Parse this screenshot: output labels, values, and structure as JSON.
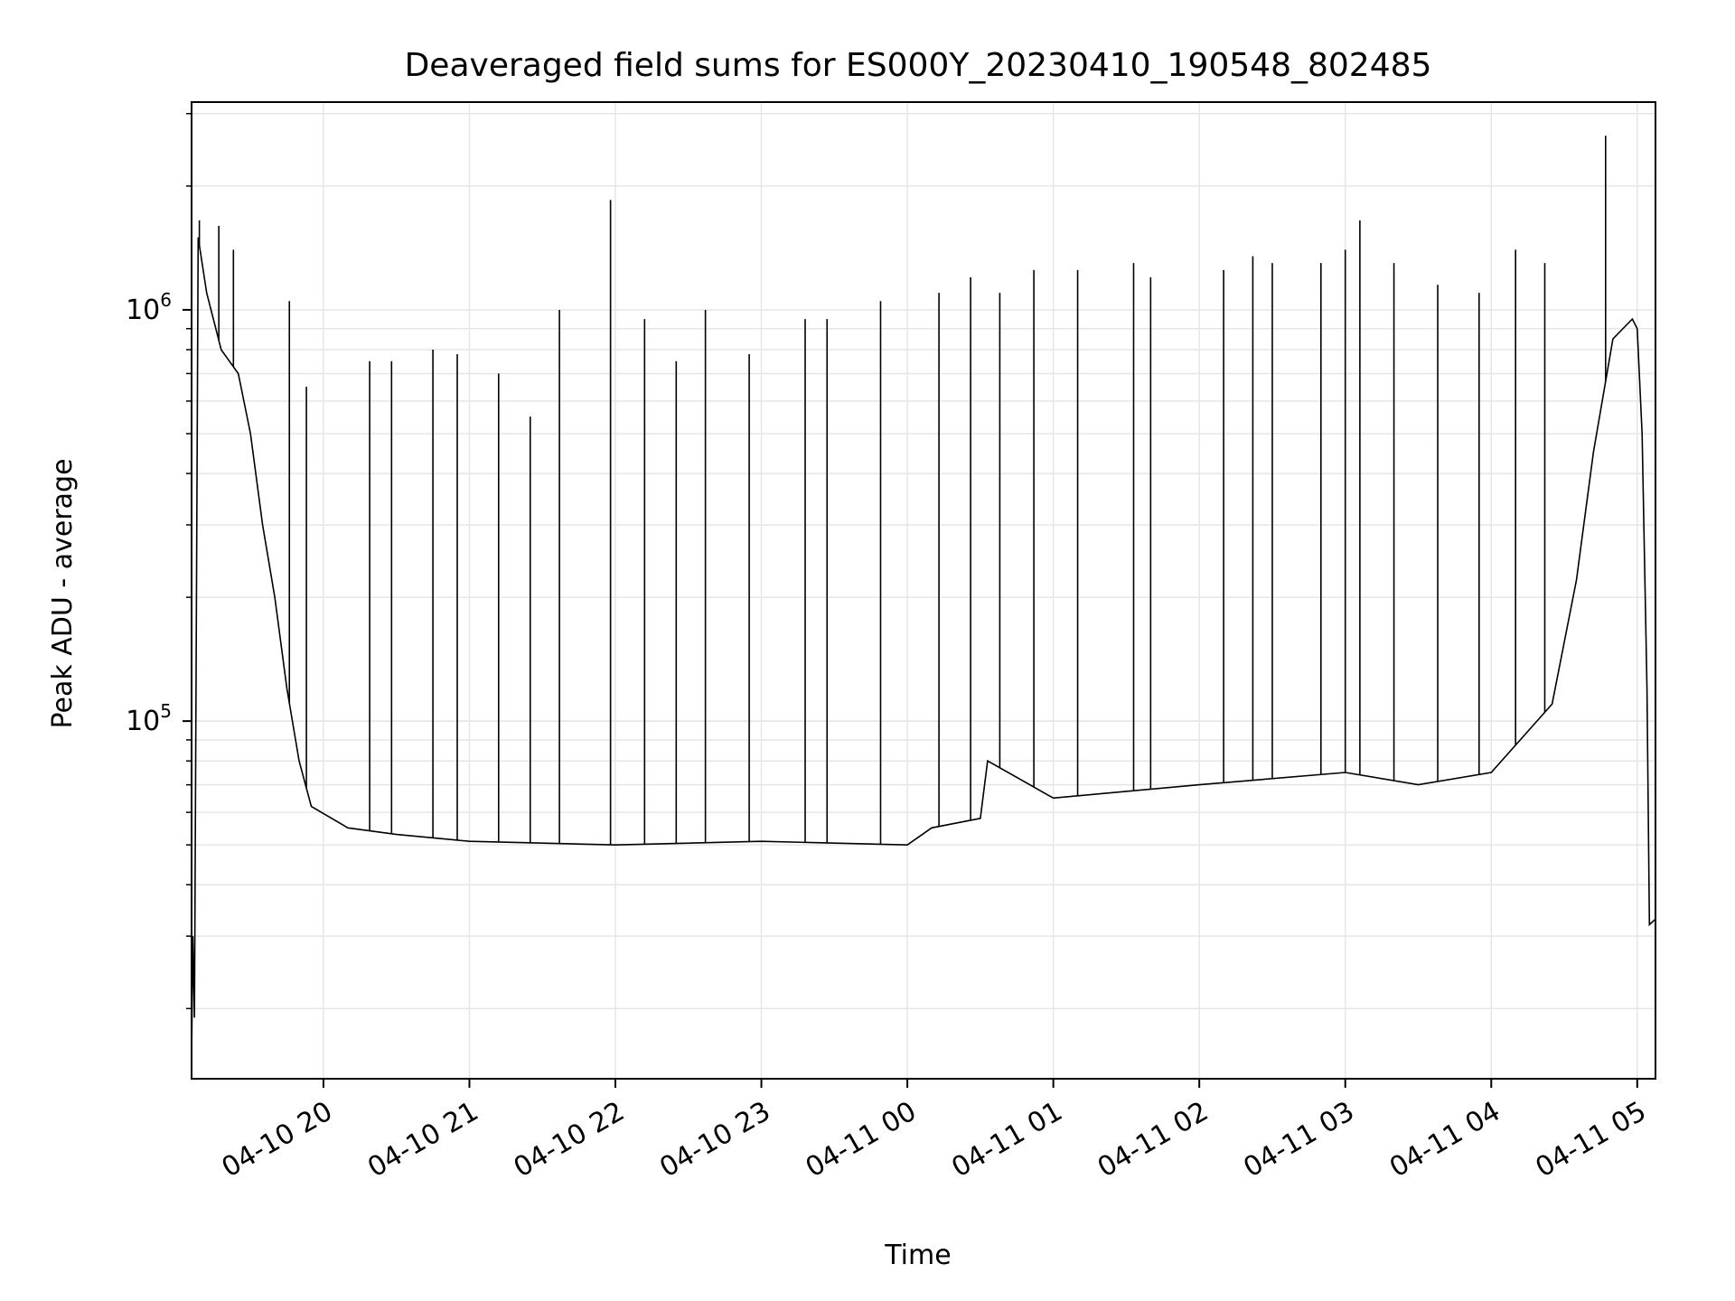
{
  "chart_data": {
    "type": "line",
    "title": "Deaveraged field sums for ES000Y_20230410_190548_802485",
    "xlabel": "Time",
    "ylabel": "Peak ADU - average",
    "y_scale": "log",
    "ylim": [
      13500,
      3200000
    ],
    "xlim": [
      "2023-04-10 19:05:48",
      "2023-04-11 05:07:30"
    ],
    "grid": true,
    "colors": {
      "line": "#000000",
      "grid": "#e6e6e6",
      "axes": "#000000"
    },
    "x_ticks": [
      {
        "value": "2023-04-10 20:00",
        "label": "04-10 20"
      },
      {
        "value": "2023-04-10 21:00",
        "label": "04-10 21"
      },
      {
        "value": "2023-04-10 22:00",
        "label": "04-10 22"
      },
      {
        "value": "2023-04-10 23:00",
        "label": "04-10 23"
      },
      {
        "value": "2023-04-11 00:00",
        "label": "04-11 00"
      },
      {
        "value": "2023-04-11 01:00",
        "label": "04-11 01"
      },
      {
        "value": "2023-04-11 02:00",
        "label": "04-11 02"
      },
      {
        "value": "2023-04-11 03:00",
        "label": "04-11 03"
      },
      {
        "value": "2023-04-11 04:00",
        "label": "04-11 04"
      },
      {
        "value": "2023-04-11 05:00",
        "label": "04-11 05"
      }
    ],
    "y_major_ticks": [
      {
        "value": 100000,
        "base": "10",
        "exp": "5"
      },
      {
        "value": 1000000,
        "base": "10",
        "exp": "6"
      }
    ],
    "series": [
      {
        "baseline": [
          {
            "t": "2023-04-10 19:05:48",
            "y": 15000
          },
          {
            "t": "2023-04-10 19:06:20",
            "y": 30000
          },
          {
            "t": "2023-04-10 19:07:00",
            "y": 19000
          },
          {
            "t": "2023-04-10 19:08:30",
            "y": 1500000
          },
          {
            "t": "2023-04-10 19:12:00",
            "y": 1100000
          },
          {
            "t": "2023-04-10 19:18:00",
            "y": 800000
          },
          {
            "t": "2023-04-10 19:25:00",
            "y": 700000
          },
          {
            "t": "2023-04-10 19:30:00",
            "y": 500000
          },
          {
            "t": "2023-04-10 19:35:00",
            "y": 300000
          },
          {
            "t": "2023-04-10 19:40:00",
            "y": 200000
          },
          {
            "t": "2023-04-10 19:45:00",
            "y": 120000
          },
          {
            "t": "2023-04-10 19:50:00",
            "y": 80000
          },
          {
            "t": "2023-04-10 19:55:00",
            "y": 62000
          },
          {
            "t": "2023-04-10 20:10:00",
            "y": 55000
          },
          {
            "t": "2023-04-10 20:30:00",
            "y": 53000
          },
          {
            "t": "2023-04-10 21:00:00",
            "y": 51000
          },
          {
            "t": "2023-04-10 22:00:00",
            "y": 50000
          },
          {
            "t": "2023-04-10 23:00:00",
            "y": 51000
          },
          {
            "t": "2023-04-11 00:00:00",
            "y": 50000
          },
          {
            "t": "2023-04-11 00:10:00",
            "y": 55000
          },
          {
            "t": "2023-04-11 00:30:00",
            "y": 58000
          },
          {
            "t": "2023-04-11 00:33:00",
            "y": 80000
          },
          {
            "t": "2023-04-11 01:00:00",
            "y": 65000
          },
          {
            "t": "2023-04-11 02:00:00",
            "y": 70000
          },
          {
            "t": "2023-04-11 03:00:00",
            "y": 75000
          },
          {
            "t": "2023-04-11 03:30:00",
            "y": 70000
          },
          {
            "t": "2023-04-11 04:00:00",
            "y": 75000
          },
          {
            "t": "2023-04-11 04:25:00",
            "y": 110000
          },
          {
            "t": "2023-04-11 04:35:00",
            "y": 220000
          },
          {
            "t": "2023-04-11 04:42:00",
            "y": 450000
          },
          {
            "t": "2023-04-11 04:50:00",
            "y": 850000
          },
          {
            "t": "2023-04-11 04:58:00",
            "y": 950000
          },
          {
            "t": "2023-04-11 05:00:00",
            "y": 900000
          },
          {
            "t": "2023-04-11 05:02:00",
            "y": 500000
          },
          {
            "t": "2023-04-11 05:04:00",
            "y": 120000
          },
          {
            "t": "2023-04-11 05:05:00",
            "y": 32000
          },
          {
            "t": "2023-04-11 05:07:30",
            "y": 33000
          }
        ],
        "spikes": [
          {
            "t": "2023-04-10 19:09:00",
            "y": 1650000
          },
          {
            "t": "2023-04-10 19:17:00",
            "y": 1600000
          },
          {
            "t": "2023-04-10 19:23:00",
            "y": 1400000
          },
          {
            "t": "2023-04-10 19:46:00",
            "y": 1050000
          },
          {
            "t": "2023-04-10 19:53:00",
            "y": 650000
          },
          {
            "t": "2023-04-10 20:19:00",
            "y": 750000
          },
          {
            "t": "2023-04-10 20:28:00",
            "y": 750000
          },
          {
            "t": "2023-04-10 20:45:00",
            "y": 800000
          },
          {
            "t": "2023-04-10 20:55:00",
            "y": 780000
          },
          {
            "t": "2023-04-10 21:12:00",
            "y": 700000
          },
          {
            "t": "2023-04-10 21:25:00",
            "y": 550000
          },
          {
            "t": "2023-04-10 21:37:00",
            "y": 1000000
          },
          {
            "t": "2023-04-10 21:58:00",
            "y": 1850000
          },
          {
            "t": "2023-04-10 22:12:00",
            "y": 950000
          },
          {
            "t": "2023-04-10 22:25:00",
            "y": 750000
          },
          {
            "t": "2023-04-10 22:37:00",
            "y": 1000000
          },
          {
            "t": "2023-04-10 22:55:00",
            "y": 780000
          },
          {
            "t": "2023-04-10 23:18:00",
            "y": 950000
          },
          {
            "t": "2023-04-10 23:27:00",
            "y": 950000
          },
          {
            "t": "2023-04-10 23:49:00",
            "y": 1050000
          },
          {
            "t": "2023-04-11 00:13:00",
            "y": 1100000
          },
          {
            "t": "2023-04-11 00:26:00",
            "y": 1200000
          },
          {
            "t": "2023-04-11 00:38:00",
            "y": 1100000
          },
          {
            "t": "2023-04-11 00:52:00",
            "y": 1250000
          },
          {
            "t": "2023-04-11 01:10:00",
            "y": 1250000
          },
          {
            "t": "2023-04-11 01:33:00",
            "y": 1300000
          },
          {
            "t": "2023-04-11 01:40:00",
            "y": 1200000
          },
          {
            "t": "2023-04-11 02:10:00",
            "y": 1250000
          },
          {
            "t": "2023-04-11 02:22:00",
            "y": 1350000
          },
          {
            "t": "2023-04-11 02:30:00",
            "y": 1300000
          },
          {
            "t": "2023-04-11 02:50:00",
            "y": 1300000
          },
          {
            "t": "2023-04-11 03:00:00",
            "y": 1400000
          },
          {
            "t": "2023-04-11 03:06:00",
            "y": 1650000
          },
          {
            "t": "2023-04-11 03:20:00",
            "y": 1300000
          },
          {
            "t": "2023-04-11 03:38:00",
            "y": 1150000
          },
          {
            "t": "2023-04-11 03:55:00",
            "y": 1100000
          },
          {
            "t": "2023-04-11 04:10:00",
            "y": 1400000
          },
          {
            "t": "2023-04-11 04:22:00",
            "y": 1300000
          },
          {
            "t": "2023-04-11 04:47:00",
            "y": 2650000
          }
        ]
      }
    ]
  }
}
